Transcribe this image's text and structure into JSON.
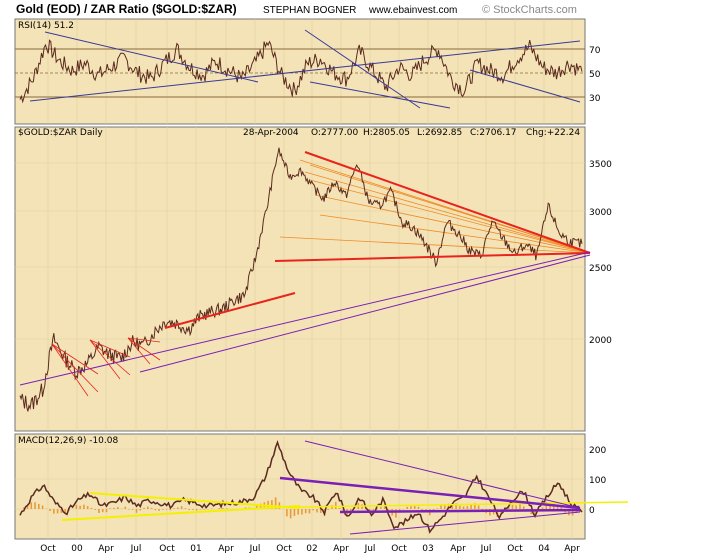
{
  "header": {
    "title": "Gold (EOD) / ZAR Ratio ($GOLD:$ZAR)",
    "author": "STEPHAN BOGNER",
    "website": "www.ebainvest.com",
    "copyright": "© StockCharts.com"
  },
  "colors": {
    "panel_bg": "#f4e3b6",
    "price_line": "#5a2a1e",
    "rsi_fill": "#e8a43a",
    "red": "#e8241c",
    "orange": "#f08a24",
    "purple": "#7a1fb8",
    "blue": "#3a3a9a",
    "yellow": "#f4f000",
    "macd_line": "#5a2a1e",
    "macd_hist": "#e89a3a"
  },
  "rsi_panel": {
    "label": "RSI(14) 51.2",
    "ticks": [
      "70",
      "50",
      "30"
    ]
  },
  "price_panel": {
    "symbol": "$GOLD:$ZAR Daily",
    "date": "28-Apr-2004",
    "open": "O:2777.00",
    "high": "H:2805.05",
    "low": "L:2692.85",
    "close": "C:2706.17",
    "change": "Chg:+22.24",
    "ticks": [
      "3500",
      "3000",
      "2500",
      "2000"
    ]
  },
  "macd_panel": {
    "label": "MACD(12,26,9) -10.08",
    "ticks": [
      "200",
      "100",
      "0"
    ]
  },
  "x_axis": {
    "labels": [
      "Oct",
      "00",
      "Apr",
      "Jul",
      "Oct",
      "01",
      "Apr",
      "Jul",
      "Oct",
      "02",
      "Apr",
      "Jul",
      "Oct",
      "03",
      "Apr",
      "Jul",
      "Oct",
      "04",
      "Apr"
    ]
  },
  "chart_data": [
    {
      "type": "line",
      "title": "RSI(14) 51.2",
      "yticks": [
        30,
        50,
        70
      ],
      "ylim": [
        15,
        90
      ],
      "series": [
        {
          "x_range": [
            "Oct 1999",
            "Apr 2004"
          ],
          "values": [
            28,
            45,
            75,
            60,
            52,
            58,
            48,
            55,
            62,
            50,
            45,
            58,
            70,
            55,
            48,
            60,
            52,
            45,
            58,
            75,
            48,
            35,
            58,
            62,
            50,
            45,
            68,
            52,
            38,
            55,
            48,
            62,
            70,
            45,
            35,
            58,
            52,
            48,
            62,
            72,
            55,
            50,
            58,
            51.2
          ]
        }
      ]
    },
    {
      "type": "line",
      "title": "$GOLD:$ZAR Daily",
      "x_range": [
        "Oct 1999",
        "Apr 2004"
      ],
      "yticks": [
        2000,
        2500,
        3000,
        3500
      ],
      "log_scale": true,
      "ohlc_last": {
        "date": "28-Apr-2004",
        "open": 2777.0,
        "high": 2805.05,
        "low": 2692.85,
        "close": 2706.17,
        "change": 22.24
      },
      "series": [
        {
          "name": "$GOLD:$ZAR",
          "values": [
            1650,
            1620,
            1700,
            2000,
            1880,
            1800,
            1850,
            1950,
            1900,
            1880,
            1980,
            1960,
            2050,
            2120,
            2100,
            2060,
            2150,
            2180,
            2200,
            2260,
            2300,
            2600,
            3050,
            3650,
            3350,
            3420,
            3250,
            3120,
            3300,
            3150,
            3500,
            3100,
            3050,
            3200,
            2900,
            2850,
            2720,
            2550,
            2900,
            2800,
            2650,
            2600,
            2900,
            2750,
            2620,
            2700,
            2600,
            3050,
            2800,
            2720,
            2706
          ]
        }
      ]
    },
    {
      "type": "line",
      "title": "MACD(12,26,9) -10.08",
      "x_range": [
        "Oct 1999",
        "Apr 2004"
      ],
      "yticks": [
        0,
        100,
        200
      ],
      "ylim": [
        -100,
        270
      ],
      "series": [
        {
          "name": "MACD",
          "values": [
            -20,
            40,
            80,
            20,
            -10,
            30,
            50,
            10,
            20,
            40,
            10,
            30,
            20,
            10,
            30,
            20,
            10,
            15,
            20,
            25,
            40,
            110,
            220,
            120,
            60,
            40,
            -10,
            60,
            -30,
            40,
            -20,
            30,
            -60,
            -40,
            -10,
            -70,
            -30,
            20,
            40,
            110,
            40,
            -30,
            30,
            60,
            -20,
            40,
            90,
            20,
            -10.08
          ]
        }
      ]
    }
  ]
}
